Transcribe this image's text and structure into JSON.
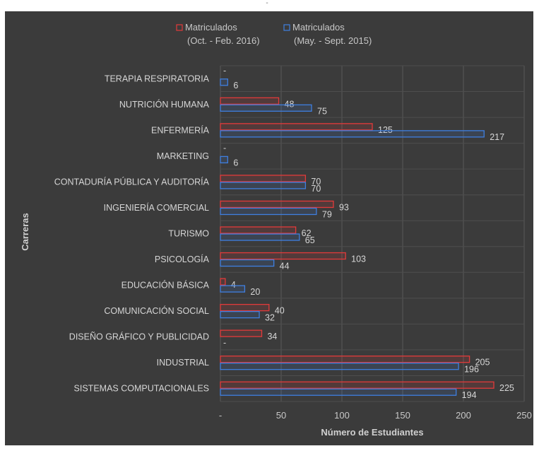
{
  "top_mark": "-",
  "chart_data": {
    "type": "bar",
    "orientation": "horizontal",
    "categories": [
      "TERAPIA RESPIRATORIA",
      "NUTRICIÓN HUMANA",
      "ENFERMERÍA",
      "MARKETING",
      "CONTADURÍA PÚBLICA Y AUDITORÍA",
      "INGENIERÍA COMERCIAL",
      "TURISMO",
      "PSICOLOGÍA",
      "EDUCACIÓN BÁSICA",
      "COMUNICACIÓN SOCIAL",
      "DISEÑO GRÁFICO Y PUBLICIDAD",
      "INDUSTRIAL",
      "SISTEMAS COMPUTACIONALES"
    ],
    "series": [
      {
        "name_line1": "Matriculados",
        "name_line2": "(Oct. - Feb. 2016)",
        "color": "#e23a3a",
        "values": [
          0,
          48,
          125,
          0,
          70,
          93,
          62,
          103,
          4,
          40,
          34,
          205,
          225
        ],
        "labels": [
          "-",
          "48",
          "125",
          "-",
          "70",
          "93",
          "62",
          "103",
          "4",
          "40",
          "34",
          "205",
          "225"
        ]
      },
      {
        "name_line1": "Matriculados",
        "name_line2": "(May. - Sept. 2015)",
        "color": "#3f7fe0",
        "values": [
          6,
          75,
          217,
          6,
          70,
          79,
          65,
          44,
          20,
          32,
          0,
          196,
          194
        ],
        "labels": [
          "6",
          "75",
          "217",
          "6",
          "70",
          "79",
          "65",
          "44",
          "20",
          "32",
          "-",
          "196",
          "194"
        ]
      }
    ],
    "xlabel": "Número de Estudiantes",
    "ylabel": "Carreras",
    "xlim": [
      0,
      250
    ],
    "xticks": [
      0,
      50,
      100,
      150,
      200,
      250
    ],
    "xtick_labels": [
      "-",
      "50",
      "100",
      "150",
      "200",
      "250"
    ],
    "grid": true,
    "legend_position": "top-center"
  }
}
